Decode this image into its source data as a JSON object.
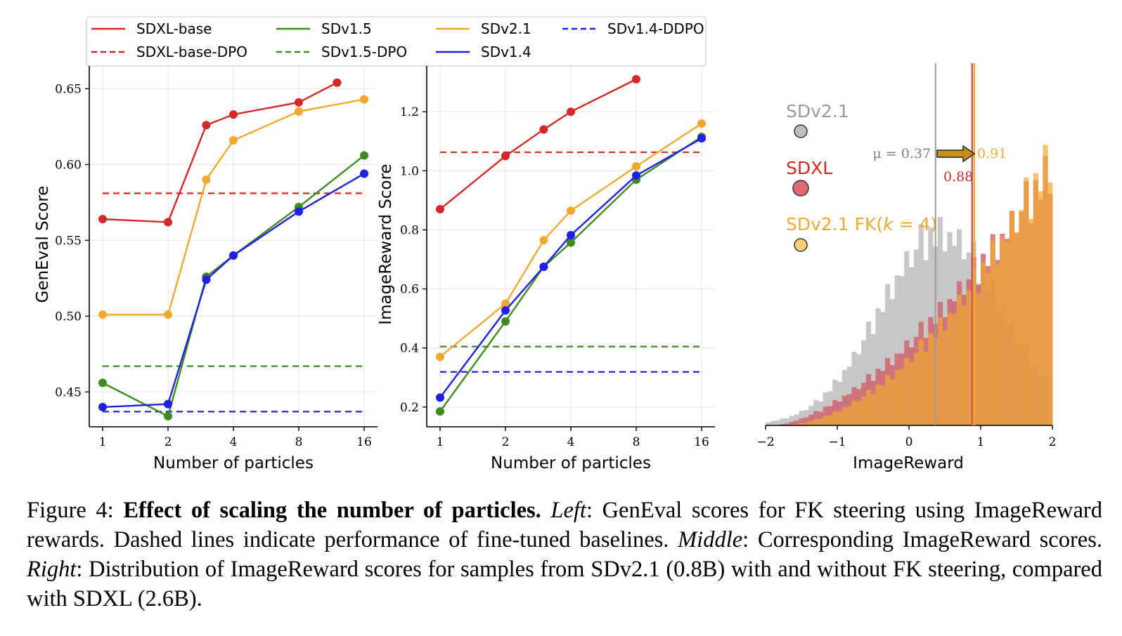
{
  "colors": {
    "sdxl": "#d62728",
    "sdv15": "#3d8b1f",
    "sdv21": "#f0a830",
    "sdv14": "#1f1fe8",
    "gray_hist": "#bdbdbd",
    "sdxl_hist": "#cf5f6a",
    "fk_hist": "#f0a830"
  },
  "legend": {
    "entries": [
      {
        "label": "SDXL-base",
        "color": "#d62728",
        "dash": false
      },
      {
        "label": "SDv1.5",
        "color": "#3d8b1f",
        "dash": false
      },
      {
        "label": "SDv2.1",
        "color": "#f0a830",
        "dash": false
      },
      {
        "label": "SDv1.4-DDPO",
        "color": "#1f1fe8",
        "dash": true
      },
      {
        "label": "SDXL-base-DPO",
        "color": "#d62728",
        "dash": true
      },
      {
        "label": "SDv1.5-DPO",
        "color": "#3d8b1f",
        "dash": true
      },
      {
        "label": "SDv1.4",
        "color": "#1f1fe8",
        "dash": false
      }
    ]
  },
  "chart_data": [
    {
      "type": "line",
      "xlabel": "Number of particles",
      "ylabel": "GenEval Score",
      "x_scale": "log2",
      "x_ticks": [
        "1",
        "2",
        "4",
        "8",
        "16"
      ],
      "y_ticks": [
        "0.45",
        "0.50",
        "0.55",
        "0.60",
        "0.65"
      ],
      "ylim": [
        0.427,
        0.665
      ],
      "series": [
        {
          "name": "SDXL-base",
          "color": "#d62728",
          "x": [
            1,
            2,
            3,
            4,
            8,
            12
          ],
          "y": [
            0.564,
            0.562,
            0.626,
            0.633,
            0.641,
            0.654
          ]
        },
        {
          "name": "SDv2.1",
          "color": "#f0a830",
          "x": [
            1,
            2,
            3,
            4,
            8,
            16
          ],
          "y": [
            0.501,
            0.501,
            0.59,
            0.616,
            0.635,
            0.643
          ]
        },
        {
          "name": "SDv1.5",
          "color": "#3d8b1f",
          "x": [
            1,
            2,
            3,
            4,
            8,
            16
          ],
          "y": [
            0.456,
            0.434,
            0.526,
            0.54,
            0.572,
            0.606
          ]
        },
        {
          "name": "SDv1.4",
          "color": "#1f1fe8",
          "x": [
            1,
            2,
            3,
            4,
            8,
            16
          ],
          "y": [
            0.44,
            0.442,
            0.524,
            0.54,
            0.569,
            0.594
          ]
        }
      ],
      "baselines": [
        {
          "name": "SDXL-base-DPO",
          "color": "#d62728",
          "y": 0.581
        },
        {
          "name": "SDv1.5-DPO",
          "color": "#3d8b1f",
          "y": 0.467
        },
        {
          "name": "SDv1.4-DDPO",
          "color": "#1f1fe8",
          "y": 0.437
        }
      ],
      "grid": true
    },
    {
      "type": "line",
      "xlabel": "Number of particles",
      "ylabel": "ImageReward Score",
      "x_scale": "log2",
      "x_ticks": [
        "1",
        "2",
        "4",
        "8",
        "16"
      ],
      "y_ticks": [
        "0.2",
        "0.4",
        "0.6",
        "0.8",
        "1.0",
        "1.2"
      ],
      "ylim": [
        0.133,
        1.355
      ],
      "series": [
        {
          "name": "SDXL-base",
          "color": "#d62728",
          "x": [
            1,
            2,
            3,
            4,
            8
          ],
          "y": [
            0.87,
            1.05,
            1.14,
            1.2,
            1.31
          ]
        },
        {
          "name": "SDv2.1",
          "color": "#f0a830",
          "x": [
            1,
            2,
            3,
            4,
            8,
            16
          ],
          "y": [
            0.37,
            0.55,
            0.765,
            0.865,
            1.015,
            1.16
          ]
        },
        {
          "name": "SDv1.5",
          "color": "#3d8b1f",
          "x": [
            1,
            2,
            3,
            4,
            8,
            16
          ],
          "y": [
            0.185,
            0.49,
            0.675,
            0.757,
            0.97,
            1.115
          ]
        },
        {
          "name": "SDv1.4",
          "color": "#1f1fe8",
          "x": [
            1,
            2,
            3,
            4,
            8,
            16
          ],
          "y": [
            0.232,
            0.527,
            0.675,
            0.782,
            0.984,
            1.11
          ]
        }
      ],
      "baselines": [
        {
          "name": "SDXL-base-DPO",
          "color": "#d62728",
          "y": 1.063
        },
        {
          "name": "SDv1.5-DPO",
          "color": "#3d8b1f",
          "y": 0.405
        },
        {
          "name": "SDv1.4-DDPO",
          "color": "#1f1fe8",
          "y": 0.319
        }
      ],
      "grid": true
    },
    {
      "type": "bar",
      "subtype": "histogram",
      "xlabel": "ImageReward",
      "x_ticks": [
        "−2",
        "−1",
        "0",
        "1",
        "2"
      ],
      "xlim": [
        -2,
        2
      ],
      "series": [
        {
          "name": "SDv2.1",
          "color": "#bdbdbd",
          "mean": 0.37
        },
        {
          "name": "SDXL",
          "color": "#cf5f6a",
          "mean": 0.88
        },
        {
          "name": "SDv2.1 FK(k = 4)",
          "color": "#f0a830",
          "mean": 0.91
        }
      ],
      "annotations": [
        "μ = 0.37",
        "0.91",
        "0.88"
      ]
    }
  ],
  "right_legend": {
    "sdv21": "SDv2.1",
    "sdxl": "SDXL",
    "fk_prefix": "SDv2.1 FK(",
    "fk_k": "k",
    "fk_suffix": " = 4)"
  },
  "annotations": {
    "mu_label": "μ = 0.37",
    "fk_mean": "0.91",
    "sdxl_mean": "0.88"
  },
  "caption": {
    "fig_label": "Figure 4:",
    "title": "Effect of scaling the number of particles.",
    "left_label": "Left",
    "left_text": ": GenEval scores for FK steering using ImageReward rewards. Dashed lines indicate performance of fine-tuned baselines.",
    "middle_label": "Middle",
    "middle_text": ": Corresponding ImageReward scores.",
    "right_label": "Right",
    "right_text": ": Distribution of ImageReward scores for samples from SDv2.1 (0.8B) with and without FK steering, compared with SDXL (2.6B)."
  }
}
